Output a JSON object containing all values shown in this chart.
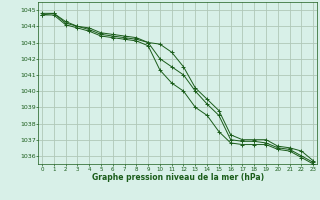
{
  "x": [
    0,
    1,
    2,
    3,
    4,
    5,
    6,
    7,
    8,
    9,
    10,
    11,
    12,
    13,
    14,
    15,
    16,
    17,
    18,
    19,
    20,
    21,
    22,
    23
  ],
  "line1": [
    1044.8,
    1044.8,
    1044.3,
    1044.0,
    1043.9,
    1043.6,
    1043.5,
    1043.4,
    1043.3,
    1043.0,
    1042.9,
    1042.4,
    1041.5,
    1040.2,
    1039.5,
    1038.8,
    1037.3,
    1037.0,
    1037.0,
    1037.0,
    1036.6,
    1036.5,
    1036.3,
    1035.7
  ],
  "line2": [
    1044.7,
    1044.8,
    1044.2,
    1044.0,
    1043.8,
    1043.5,
    1043.4,
    1043.3,
    1043.2,
    1043.0,
    1042.0,
    1041.5,
    1041.0,
    1040.0,
    1039.2,
    1038.5,
    1037.0,
    1036.9,
    1036.9,
    1036.8,
    1036.5,
    1036.4,
    1036.0,
    1035.6
  ],
  "line3": [
    1044.7,
    1044.7,
    1044.1,
    1043.9,
    1043.7,
    1043.4,
    1043.3,
    1043.2,
    1043.1,
    1042.8,
    1041.3,
    1040.5,
    1040.0,
    1039.0,
    1038.5,
    1037.5,
    1036.8,
    1036.7,
    1036.7,
    1036.7,
    1036.4,
    1036.3,
    1035.9,
    1035.5
  ],
  "bg_color": "#d8f0e8",
  "plot_bg_color": "#d8f0e8",
  "grid_major_color": "#b0c8b8",
  "grid_minor_color": "#c4dcd0",
  "line_color": "#1a5c1a",
  "marker_color": "#1a5c1a",
  "axis_color": "#1a5c1a",
  "label_color": "#1a5c1a",
  "xlabel": "Graphe pression niveau de la mer (hPa)",
  "ylim_min": 1035.5,
  "ylim_max": 1045.5,
  "yticks": [
    1036,
    1037,
    1038,
    1039,
    1040,
    1041,
    1042,
    1043,
    1044,
    1045
  ],
  "xlim_min": -0.3,
  "xlim_max": 23.3
}
